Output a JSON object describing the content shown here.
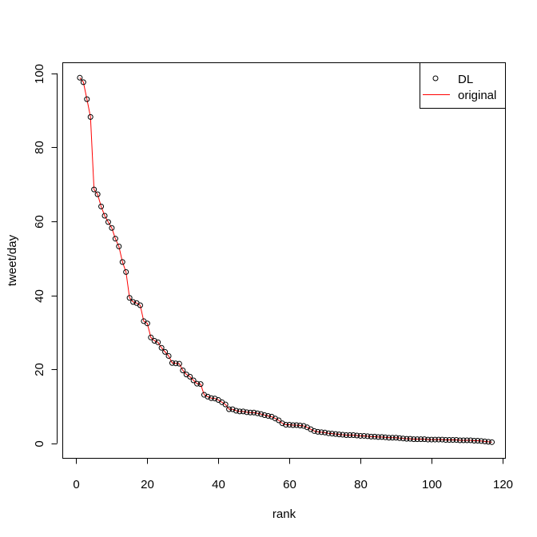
{
  "chart_data": {
    "type": "scatter",
    "title": "",
    "xlabel": "rank",
    "ylabel": "tweet/day",
    "xlim": [
      -3.7,
      120.7
    ],
    "ylim": [
      -3.95,
      102.75
    ],
    "xticks": [
      0,
      20,
      40,
      60,
      80,
      100,
      120
    ],
    "yticks": [
      0,
      20,
      40,
      60,
      80,
      100
    ],
    "grid": false,
    "legend_position": "top-right",
    "series": [
      {
        "name": "DL",
        "style": "points",
        "marker": "open-circle",
        "color": "#000000",
        "x": [
          1,
          2,
          3,
          4,
          5,
          6,
          7,
          8,
          9,
          10,
          11,
          12,
          13,
          14,
          15,
          16,
          17,
          18,
          19,
          20,
          21,
          22,
          23,
          24,
          25,
          26,
          27,
          28,
          29,
          30,
          31,
          32,
          33,
          34,
          35,
          36,
          37,
          38,
          39,
          40,
          41,
          42,
          43,
          44,
          45,
          46,
          47,
          48,
          49,
          50,
          51,
          52,
          53,
          54,
          55,
          56,
          57,
          58,
          59,
          60,
          61,
          62,
          63,
          64,
          65,
          66,
          67,
          68,
          69,
          70,
          71,
          72,
          73,
          74,
          75,
          76,
          77,
          78,
          79,
          80,
          81,
          82,
          83,
          84,
          85,
          86,
          87,
          88,
          89,
          90,
          91,
          92,
          93,
          94,
          95,
          96,
          97,
          98,
          99,
          100,
          101,
          102,
          103,
          104,
          105,
          106,
          107,
          108,
          109,
          110,
          111,
          112,
          113,
          114,
          115,
          116,
          117
        ],
        "y": [
          98.8,
          97.6,
          93.0,
          88.2,
          68.6,
          67.3,
          64.0,
          61.5,
          59.8,
          58.2,
          55.3,
          53.2,
          49.0,
          46.3,
          39.3,
          38.2,
          37.9,
          37.3,
          33.0,
          32.4,
          28.6,
          27.7,
          27.3,
          25.8,
          24.7,
          23.6,
          21.7,
          21.6,
          21.5,
          19.7,
          18.6,
          18.0,
          17.0,
          16.1,
          16.0,
          13.1,
          12.6,
          12.2,
          12.1,
          11.7,
          11.1,
          10.5,
          9.2,
          9.2,
          8.8,
          8.6,
          8.6,
          8.4,
          8.3,
          8.3,
          8.1,
          7.9,
          7.6,
          7.4,
          7.2,
          6.7,
          6.2,
          5.4,
          5.0,
          5.0,
          4.9,
          4.9,
          4.8,
          4.7,
          4.3,
          3.8,
          3.3,
          3.1,
          3.0,
          2.9,
          2.7,
          2.6,
          2.5,
          2.4,
          2.3,
          2.2,
          2.2,
          2.2,
          2.1,
          2.0,
          2.0,
          1.9,
          1.8,
          1.8,
          1.7,
          1.7,
          1.6,
          1.5,
          1.5,
          1.5,
          1.4,
          1.3,
          1.2,
          1.2,
          1.1,
          1.1,
          1.1,
          1.1,
          1.0,
          1.0,
          1.0,
          1.0,
          1.0,
          0.9,
          0.9,
          0.9,
          0.9,
          0.8,
          0.8,
          0.8,
          0.8,
          0.7,
          0.7,
          0.6,
          0.5,
          0.4,
          0.3
        ]
      },
      {
        "name": "original",
        "style": "line",
        "color": "#ff0000",
        "x": [
          1,
          2,
          3,
          4,
          5,
          6,
          7,
          8,
          9,
          10,
          11,
          12,
          13,
          14,
          15,
          16,
          17,
          18,
          19,
          20,
          21,
          22,
          23,
          24,
          25,
          26,
          27,
          28,
          29,
          30,
          31,
          32,
          33,
          34,
          35,
          36,
          37,
          38,
          39,
          40,
          41,
          42,
          43,
          44,
          45,
          46,
          47,
          48,
          49,
          50,
          51,
          52,
          53,
          54,
          55,
          56,
          57,
          58,
          59,
          60,
          61,
          62,
          63,
          64,
          65,
          66,
          67,
          68,
          69,
          70,
          71,
          72,
          73,
          74,
          75,
          76,
          77,
          78,
          79,
          80,
          81,
          82,
          83,
          84,
          85,
          86,
          87,
          88,
          89,
          90,
          91,
          92,
          93,
          94,
          95,
          96,
          97,
          98,
          99,
          100,
          101,
          102,
          103,
          104,
          105,
          106,
          107,
          108,
          109,
          110,
          111,
          112,
          113,
          114,
          115,
          116,
          117
        ],
        "y": [
          98.8,
          97.6,
          93.0,
          88.2,
          68.6,
          67.3,
          64.0,
          61.5,
          59.8,
          58.2,
          55.3,
          53.2,
          49.0,
          46.3,
          39.3,
          38.2,
          37.9,
          37.3,
          33.0,
          32.4,
          28.6,
          27.7,
          27.3,
          25.8,
          24.7,
          23.6,
          21.7,
          21.6,
          21.5,
          19.7,
          18.6,
          18.0,
          17.0,
          16.1,
          16.0,
          13.1,
          12.6,
          12.2,
          12.1,
          11.7,
          11.1,
          10.5,
          9.2,
          9.2,
          8.8,
          8.6,
          8.6,
          8.4,
          8.3,
          8.3,
          8.1,
          7.9,
          7.6,
          7.4,
          7.2,
          6.7,
          6.2,
          5.4,
          5.0,
          5.0,
          4.9,
          4.9,
          4.8,
          4.7,
          4.3,
          3.8,
          3.3,
          3.1,
          3.0,
          2.9,
          2.7,
          2.6,
          2.5,
          2.4,
          2.3,
          2.2,
          2.2,
          2.2,
          2.1,
          2.0,
          2.0,
          1.9,
          1.8,
          1.8,
          1.7,
          1.7,
          1.6,
          1.5,
          1.5,
          1.5,
          1.4,
          1.3,
          1.2,
          1.2,
          1.1,
          1.1,
          1.1,
          1.1,
          1.0,
          1.0,
          1.0,
          1.0,
          1.0,
          0.9,
          0.9,
          0.9,
          0.9,
          0.8,
          0.8,
          0.8,
          0.8,
          0.7,
          0.7,
          0.6,
          0.5,
          0.4,
          0.3
        ]
      }
    ]
  }
}
